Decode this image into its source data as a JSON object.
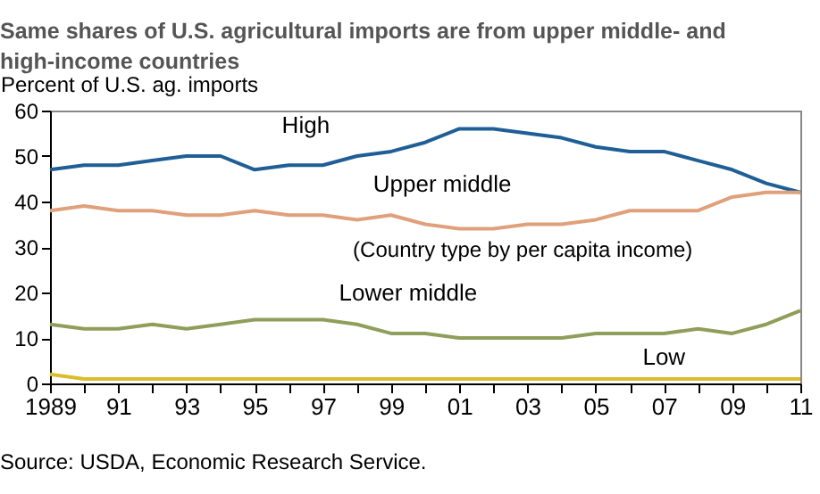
{
  "chart_data": {
    "type": "line",
    "title": "Same shares of U.S. agricultural imports are from upper middle- and high-income countries",
    "ylabel": "Percent of U.S. ag. imports",
    "x": [
      1989,
      1990,
      1991,
      1992,
      1993,
      1994,
      1995,
      1996,
      1997,
      1998,
      1999,
      2000,
      2001,
      2002,
      2003,
      2004,
      2005,
      2006,
      2007,
      2008,
      2009,
      2010,
      2011
    ],
    "series": [
      {
        "name": "High",
        "color": "#1f5f96",
        "values": [
          47,
          48,
          48,
          49,
          50,
          50,
          47,
          48,
          48,
          50,
          51,
          53,
          56,
          56,
          55,
          54,
          52,
          51,
          51,
          49,
          47,
          44,
          42
        ]
      },
      {
        "name": "Upper middle",
        "color": "#e0a07c",
        "values": [
          38,
          39,
          38,
          38,
          37,
          37,
          38,
          37,
          37,
          36,
          37,
          35,
          34,
          34,
          35,
          35,
          36,
          38,
          38,
          38,
          41,
          42,
          42
        ]
      },
      {
        "name": "Lower middle",
        "color": "#8f9e5a",
        "values": [
          13,
          12,
          12,
          13,
          12,
          13,
          14,
          14,
          14,
          13,
          11,
          11,
          10,
          10,
          10,
          10,
          11,
          11,
          11,
          12,
          11,
          13,
          16
        ]
      },
      {
        "name": "Low",
        "color": "#d9bd2c",
        "values": [
          2,
          1,
          1,
          1,
          1,
          1,
          1,
          1,
          1,
          1,
          1,
          1,
          1,
          1,
          1,
          1,
          1,
          1,
          1,
          1,
          1,
          1,
          1
        ]
      }
    ],
    "annotations": [
      "(Country type by per capita income)",
      "Source: USDA, Economic Research Service."
    ],
    "xlim": [
      1989,
      2011
    ],
    "xticks": [
      {
        "value": 1989,
        "label": "1989"
      },
      {
        "value": 1990,
        "label": null
      },
      {
        "value": 1991,
        "label": "91"
      },
      {
        "value": 1992,
        "label": null
      },
      {
        "value": 1993,
        "label": "93"
      },
      {
        "value": 1994,
        "label": null
      },
      {
        "value": 1995,
        "label": "95"
      },
      {
        "value": 1996,
        "label": null
      },
      {
        "value": 1997,
        "label": "97"
      },
      {
        "value": 1998,
        "label": null
      },
      {
        "value": 1999,
        "label": "99"
      },
      {
        "value": 2000,
        "label": null
      },
      {
        "value": 2001,
        "label": "01"
      },
      {
        "value": 2002,
        "label": null
      },
      {
        "value": 2003,
        "label": "03"
      },
      {
        "value": 2004,
        "label": null
      },
      {
        "value": 2005,
        "label": "05"
      },
      {
        "value": 2006,
        "label": null
      },
      {
        "value": 2007,
        "label": "07"
      },
      {
        "value": 2008,
        "label": null
      },
      {
        "value": 2009,
        "label": "09"
      },
      {
        "value": 2010,
        "label": null
      },
      {
        "value": 2011,
        "label": "11"
      }
    ],
    "ylim": [
      0,
      60
    ],
    "yticks": [
      0,
      10,
      20,
      30,
      40,
      50,
      60
    ],
    "grid": false,
    "legend": false,
    "marker": "none",
    "line_style": "solid"
  }
}
